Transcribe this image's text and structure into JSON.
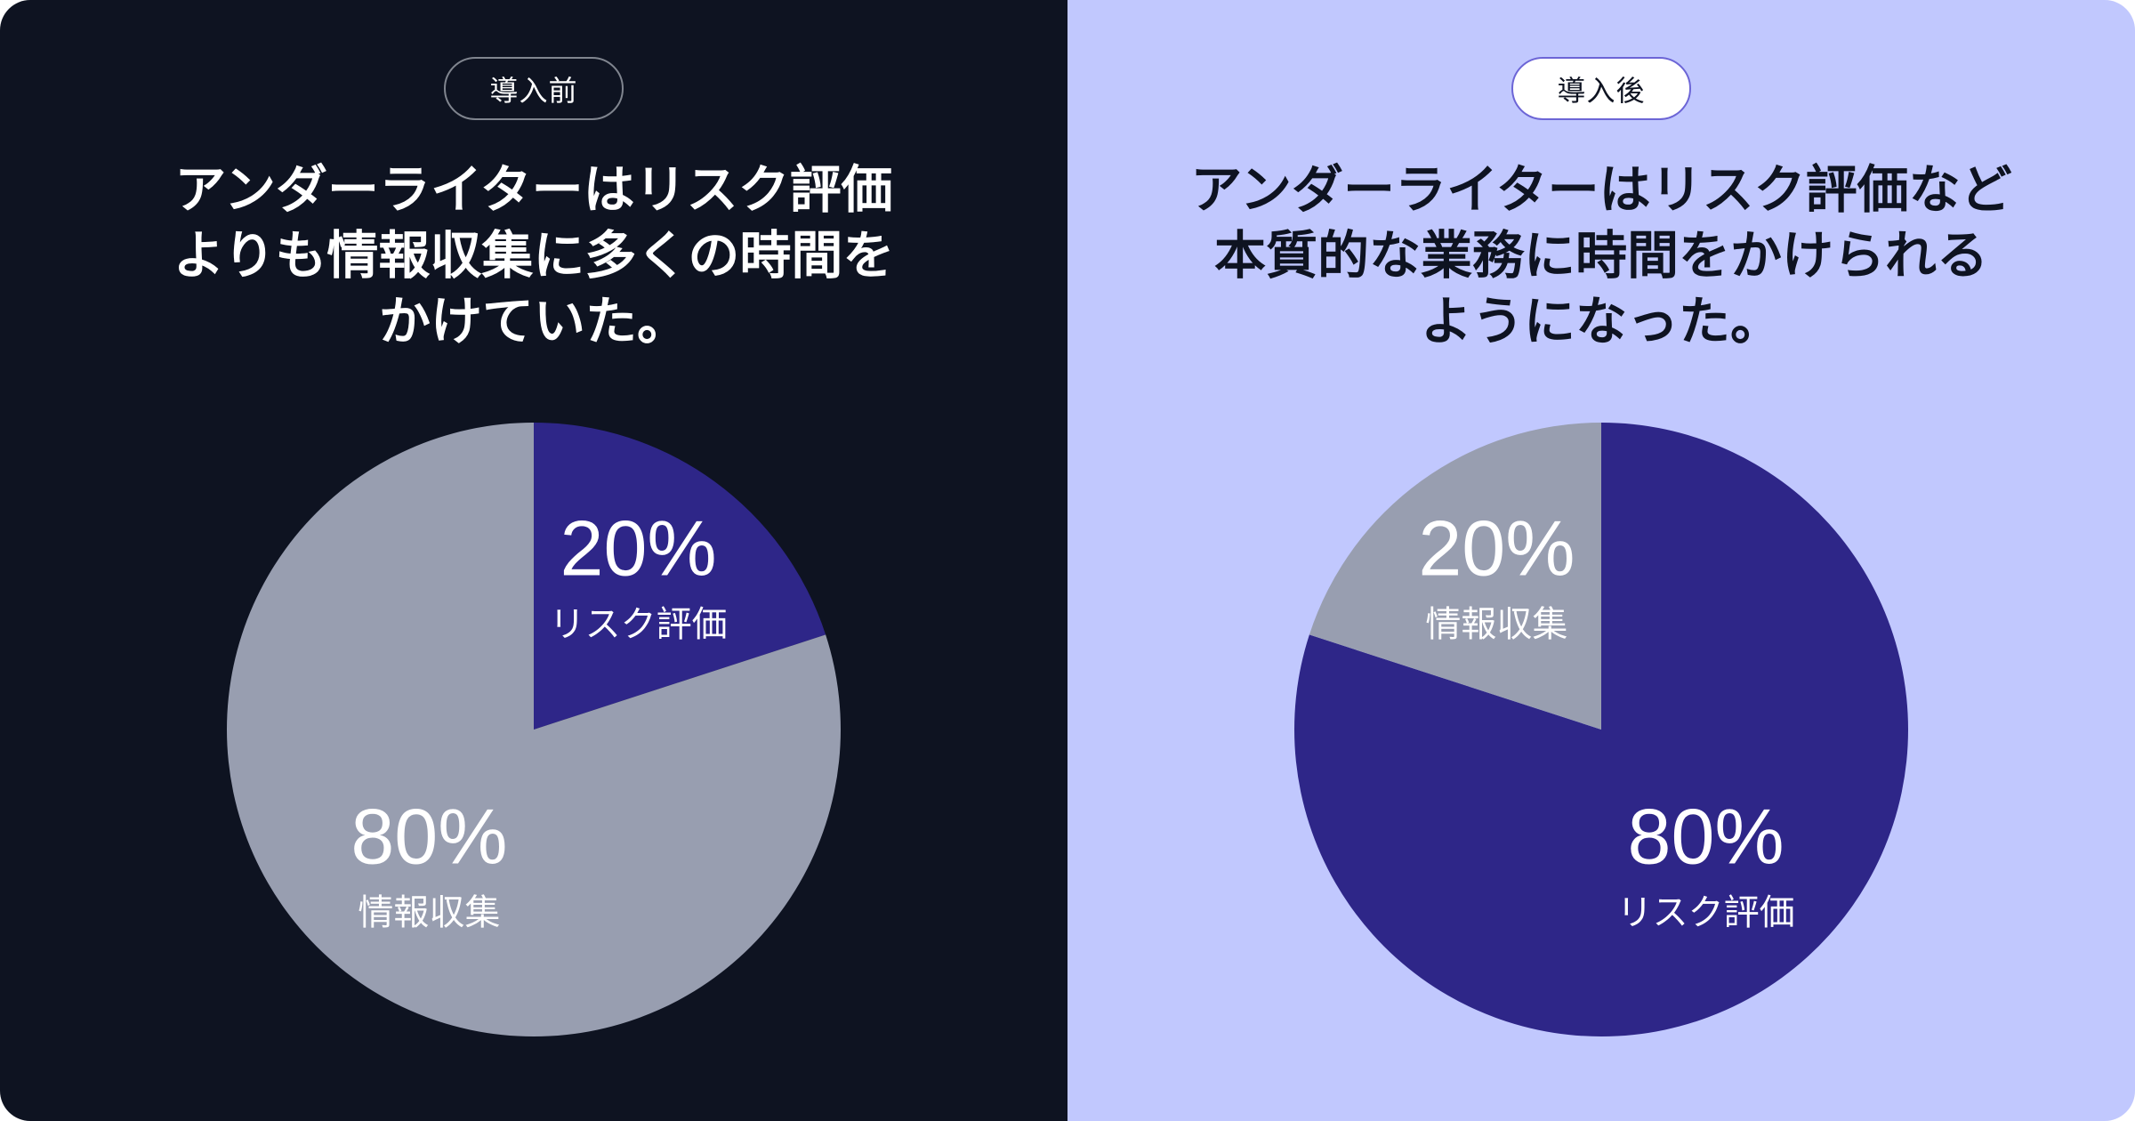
{
  "chart_data": [
    {
      "type": "pie",
      "label": "導入前",
      "title": "アンダーライターはリスク評価\nよりも情報収集に多くの時間を\nかけていた。",
      "background": "#0e1321",
      "slices": [
        {
          "name": "リスク評価",
          "value": 20,
          "label": "20%",
          "color": "#2e2688"
        },
        {
          "name": "情報収集",
          "value": 80,
          "label": "80%",
          "color": "#989eb0"
        }
      ]
    },
    {
      "type": "pie",
      "label": "導入後",
      "title": "アンダーライターはリスク評価など\n本質的な業務に時間をかけられる\nようになった。",
      "background": "#c1c8fe",
      "slices": [
        {
          "name": "リスク評価",
          "value": 80,
          "label": "80%",
          "color": "#2e2688"
        },
        {
          "name": "情報収集",
          "value": 20,
          "label": "20%",
          "color": "#989eb0"
        }
      ]
    }
  ]
}
